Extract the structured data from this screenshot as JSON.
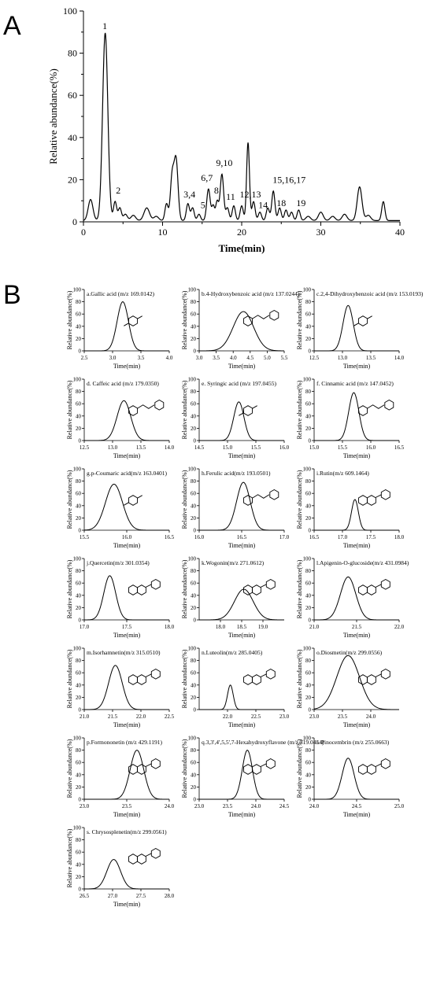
{
  "panels": {
    "A": "A",
    "B": "B"
  },
  "chart_data": [
    {
      "id": "A",
      "type": "line",
      "xlabel": "Time(min)",
      "ylabel": "Relative abundance(%)",
      "xlim": [
        0,
        40
      ],
      "ylim": [
        0,
        100
      ],
      "xticks": [
        "0",
        "10",
        "20",
        "30",
        "40"
      ],
      "yticks": [
        "0",
        "20",
        "40",
        "60",
        "80",
        "100"
      ],
      "peaks": [
        {
          "t": 0.9,
          "h": 10,
          "w": 0.3
        },
        {
          "t": 2.75,
          "h": 89,
          "w": 0.33
        },
        {
          "t": 4.0,
          "h": 9,
          "w": 0.2
        },
        {
          "t": 4.6,
          "h": 6,
          "w": 0.2
        },
        {
          "t": 5.3,
          "h": 3,
          "w": 0.25
        },
        {
          "t": 6.3,
          "h": 2.5,
          "w": 0.3
        },
        {
          "t": 8.0,
          "h": 6,
          "w": 0.35
        },
        {
          "t": 9.2,
          "h": 2,
          "w": 0.3
        },
        {
          "t": 10.5,
          "h": 8,
          "w": 0.2
        },
        {
          "t": 11.2,
          "h": 20,
          "w": 0.22
        },
        {
          "t": 11.7,
          "h": 29,
          "w": 0.25
        },
        {
          "t": 13.2,
          "h": 8,
          "w": 0.2
        },
        {
          "t": 13.8,
          "h": 6,
          "w": 0.2
        },
        {
          "t": 14.6,
          "h": 3,
          "w": 0.2
        },
        {
          "t": 15.8,
          "h": 15,
          "w": 0.22
        },
        {
          "t": 16.4,
          "h": 7,
          "w": 0.18
        },
        {
          "t": 16.9,
          "h": 9,
          "w": 0.18
        },
        {
          "t": 17.5,
          "h": 22,
          "w": 0.22
        },
        {
          "t": 18.2,
          "h": 6,
          "w": 0.2
        },
        {
          "t": 19.0,
          "h": 7,
          "w": 0.2
        },
        {
          "t": 20.0,
          "h": 7,
          "w": 0.2
        },
        {
          "t": 20.8,
          "h": 37,
          "w": 0.18
        },
        {
          "t": 21.5,
          "h": 9,
          "w": 0.2
        },
        {
          "t": 22.3,
          "h": 4,
          "w": 0.2
        },
        {
          "t": 23.3,
          "h": 6,
          "w": 0.2
        },
        {
          "t": 24.0,
          "h": 14,
          "w": 0.2
        },
        {
          "t": 24.8,
          "h": 6,
          "w": 0.2
        },
        {
          "t": 25.6,
          "h": 5,
          "w": 0.2
        },
        {
          "t": 26.3,
          "h": 4,
          "w": 0.2
        },
        {
          "t": 27.2,
          "h": 5,
          "w": 0.2
        },
        {
          "t": 28.4,
          "h": 2,
          "w": 0.3
        },
        {
          "t": 30.0,
          "h": 4,
          "w": 0.3
        },
        {
          "t": 31.5,
          "h": 2,
          "w": 0.3
        },
        {
          "t": 33.0,
          "h": 3,
          "w": 0.3
        },
        {
          "t": 34.9,
          "h": 16,
          "w": 0.3
        },
        {
          "t": 36.0,
          "h": 2.5,
          "w": 0.3
        },
        {
          "t": 37.9,
          "h": 9,
          "w": 0.2
        }
      ],
      "peak_labels": [
        {
          "text": "1",
          "t": 2.7,
          "h": 90
        },
        {
          "text": "2",
          "t": 4.4,
          "h": 12
        },
        {
          "text": "3,4",
          "t": 13.4,
          "h": 10
        },
        {
          "text": "5",
          "t": 15.1,
          "h": 5
        },
        {
          "text": "6,7",
          "t": 15.6,
          "h": 18
        },
        {
          "text": "8",
          "t": 16.8,
          "h": 12
        },
        {
          "text": "9,10",
          "t": 17.8,
          "h": 25
        },
        {
          "text": "11",
          "t": 18.6,
          "h": 9
        },
        {
          "text": "12,13",
          "t": 21.1,
          "h": 10
        },
        {
          "text": "14",
          "t": 22.7,
          "h": 5
        },
        {
          "text": "15,16,17",
          "t": 26.0,
          "h": 17
        },
        {
          "text": "18",
          "t": 25.0,
          "h": 6
        },
        {
          "text": "19",
          "t": 27.5,
          "h": 6
        }
      ]
    },
    {
      "id": "a",
      "type": "line",
      "title": "a.Gallic acid (m/z 169.0142)",
      "xlabel": "Time(min)",
      "ylabel": "Relative abundance(%)",
      "xlim": [
        2.5,
        4.0
      ],
      "ylim": [
        0,
        100
      ],
      "xticks": [
        "2.5",
        "3.0",
        "3.5",
        "4.0"
      ],
      "yticks": [
        "0",
        "20",
        "40",
        "60",
        "80",
        "100"
      ],
      "peak": {
        "center": 3.18,
        "height": 80,
        "width": 0.1
      }
    },
    {
      "id": "b",
      "type": "line",
      "title": "b.4-Hydroxybenzoic acid (m/z 137.0244)",
      "xlabel": "Time(min)",
      "ylabel": "Relative abundance(%)",
      "xlim": [
        3.0,
        5.5
      ],
      "ylim": [
        0,
        100
      ],
      "xticks": [
        "3.0",
        "3.5",
        "4.0",
        "4.5",
        "5.0",
        "5.5"
      ],
      "yticks": [
        "0",
        "20",
        "40",
        "60",
        "80",
        "100"
      ],
      "peak": {
        "center": 4.3,
        "height": 64,
        "width": 0.3
      }
    },
    {
      "id": "c",
      "type": "line",
      "title": "c.2,4-Dihydroxybenzoic acid (m/z 153.0193)",
      "xlabel": "Time(min)",
      "ylabel": "Relative abundance(%)",
      "xlim": [
        12.5,
        14.0
      ],
      "ylim": [
        0,
        100
      ],
      "xticks": [
        "12.5",
        "13.0",
        "13.5",
        "14.0"
      ],
      "yticks": [
        "0",
        "20",
        "40",
        "60",
        "80",
        "100"
      ],
      "peak": {
        "center": 13.1,
        "height": 74,
        "width": 0.09
      }
    },
    {
      "id": "d",
      "type": "line",
      "title": "d. Caffeic acid (m/z 179.0350)",
      "xlabel": "Time(min)",
      "ylabel": "Relative abundance(%)",
      "xlim": [
        12.5,
        14.0
      ],
      "ylim": [
        0,
        100
      ],
      "xticks": [
        "12.5",
        "13.0",
        "13.5",
        "14.0"
      ],
      "yticks": [
        "0",
        "20",
        "40",
        "60",
        "80",
        "100"
      ],
      "peak": {
        "center": 13.2,
        "height": 65,
        "width": 0.12
      }
    },
    {
      "id": "e",
      "type": "line",
      "title": "e. Syringic acid (m/z 197.0455)",
      "xlabel": "Time(min)",
      "ylabel": "Relative abundance(%)",
      "xlim": [
        14.5,
        16.0
      ],
      "ylim": [
        0,
        100
      ],
      "xticks": [
        "14.5",
        "15.0",
        "15.5",
        "16.0"
      ],
      "yticks": [
        "0",
        "20",
        "40",
        "60",
        "80",
        "100"
      ],
      "peak": {
        "center": 15.2,
        "height": 63,
        "width": 0.09
      }
    },
    {
      "id": "f",
      "type": "line",
      "title": "f. Cinnamic acid (m/z 147.0452)",
      "xlabel": "Time(min)",
      "ylabel": "Relative abundance(%)",
      "xlim": [
        15.0,
        16.5
      ],
      "ylim": [
        0,
        100
      ],
      "xticks": [
        "15.0",
        "15.5",
        "16.0",
        "16.5"
      ],
      "yticks": [
        "0",
        "20",
        "40",
        "60",
        "80",
        "100"
      ],
      "peak": {
        "center": 15.7,
        "height": 78,
        "width": 0.09
      }
    },
    {
      "id": "g",
      "type": "line",
      "title": "g.p-Coumaric acid(m/z 163.0401)",
      "xlabel": "Time(min)",
      "ylabel": "Relative abundance(%)",
      "xlim": [
        15.5,
        16.5
      ],
      "ylim": [
        0,
        100
      ],
      "xticks": [
        "15.5",
        "16.0",
        "16.5"
      ],
      "yticks": [
        "0",
        "20",
        "40",
        "60",
        "80",
        "100"
      ],
      "peak": {
        "center": 15.85,
        "height": 75,
        "width": 0.1
      }
    },
    {
      "id": "h",
      "type": "line",
      "title": "h.Ferulic acid(m/z 193.0501)",
      "xlabel": "Time(min)",
      "ylabel": "Relative abundance(%)",
      "xlim": [
        16.0,
        17.0
      ],
      "ylim": [
        0,
        100
      ],
      "xticks": [
        "16.0",
        "16.5",
        "17.0"
      ],
      "yticks": [
        "0",
        "20",
        "40",
        "60",
        "80",
        "100"
      ],
      "peak": {
        "center": 16.52,
        "height": 78,
        "width": 0.08
      }
    },
    {
      "id": "i",
      "type": "line",
      "title": "i.Rutin(m/z 609.1464)",
      "xlabel": "Time(min)",
      "ylabel": "Relative abundance(%)",
      "xlim": [
        16.5,
        18.0
      ],
      "ylim": [
        0,
        100
      ],
      "xticks": [
        "16.5",
        "17.0",
        "17.5",
        "18.0"
      ],
      "yticks": [
        "0",
        "20",
        "40",
        "60",
        "80",
        "100"
      ],
      "peak": {
        "center": 17.22,
        "height": 50,
        "width": 0.06
      }
    },
    {
      "id": "j",
      "type": "line",
      "title": "j.Quercetin(m/z 301.0354)",
      "xlabel": "Time(min)",
      "ylabel": "Relative abundance(%)",
      "xlim": [
        17.0,
        18.0
      ],
      "ylim": [
        0,
        100
      ],
      "xticks": [
        "17.0",
        "17.5",
        "18.0"
      ],
      "yticks": [
        "0",
        "20",
        "40",
        "60",
        "80",
        "100"
      ],
      "peak": {
        "center": 17.3,
        "height": 72,
        "width": 0.07
      }
    },
    {
      "id": "k",
      "type": "line",
      "title": "k.Wogonin(m/z 271.0612)",
      "xlabel": "Time(min)",
      "ylabel": "Relative abundance(%)",
      "xlim": [
        17.5,
        19.5
      ],
      "ylim": [
        0,
        100
      ],
      "xticks": [
        "18.0",
        "18.5",
        "19.0"
      ],
      "yticks": [
        "0",
        "20",
        "40",
        "60",
        "80",
        "100"
      ],
      "peak": {
        "center": 18.55,
        "height": 50,
        "width": 0.22
      }
    },
    {
      "id": "l",
      "type": "line",
      "title": "l.Apigenin-O-glucoside(m/z 431.0984)",
      "xlabel": "Time(min)",
      "ylabel": "Relative abundance(%)",
      "xlim": [
        21.0,
        22.0
      ],
      "ylim": [
        0,
        100
      ],
      "xticks": [
        "21.0",
        "21.5",
        "22.0"
      ],
      "yticks": [
        "0",
        "20",
        "40",
        "60",
        "80",
        "100"
      ],
      "peak": {
        "center": 21.4,
        "height": 70,
        "width": 0.09
      }
    },
    {
      "id": "m",
      "type": "line",
      "title": "m.Isorhamnetin(m/z 315.0510)",
      "xlabel": "Time(min)",
      "ylabel": "Relative abundance(%)",
      "xlim": [
        21.0,
        22.5
      ],
      "ylim": [
        0,
        100
      ],
      "xticks": [
        "21.0",
        "21.5",
        "22.0",
        "22.5"
      ],
      "yticks": [
        "0",
        "20",
        "40",
        "60",
        "80",
        "100"
      ],
      "peak": {
        "center": 21.55,
        "height": 72,
        "width": 0.12
      }
    },
    {
      "id": "n",
      "type": "line",
      "title": "n.Luteolin(m/z 285.0405)",
      "xlabel": "Time(min)",
      "ylabel": "Relative abundance(%)",
      "xlim": [
        21.5,
        23.0
      ],
      "ylim": [
        0,
        100
      ],
      "xticks": [
        "22.0",
        "22.5",
        "23.0"
      ],
      "yticks": [
        "0",
        "20",
        "40",
        "60",
        "80",
        "100"
      ],
      "peak": {
        "center": 22.05,
        "height": 40,
        "width": 0.05
      }
    },
    {
      "id": "o",
      "type": "line",
      "title": "o.Diosmetin(m/z 299.0556)",
      "xlabel": "Time(min)",
      "ylabel": "Relative abundance(%)",
      "xlim": [
        23.0,
        24.5
      ],
      "ylim": [
        0,
        100
      ],
      "xticks": [
        "23.0",
        "23.5",
        "24.0"
      ],
      "yticks": [
        "0",
        "20",
        "40",
        "60",
        "80",
        "100"
      ],
      "peak": {
        "center": 23.6,
        "height": 88,
        "width": 0.2
      }
    },
    {
      "id": "p",
      "type": "line",
      "title": "p.Formononetin (m/z 429.1191)",
      "xlabel": "Time(min)",
      "ylabel": "Relative abundance(%)",
      "xlim": [
        23.0,
        24.0
      ],
      "ylim": [
        0,
        100
      ],
      "xticks": [
        "23.0",
        "23.5",
        "24.0"
      ],
      "yticks": [
        "0",
        "20",
        "40",
        "60",
        "80",
        "100"
      ],
      "peak": {
        "center": 23.62,
        "height": 80,
        "width": 0.08
      }
    },
    {
      "id": "q",
      "type": "line",
      "title": "q.3,3',4',5,5',7-Hexahydroxyflavone (m/z 319.0454)",
      "xlabel": "Time(min)",
      "ylabel": "Relative abundance(%)",
      "xlim": [
        23.0,
        24.5
      ],
      "ylim": [
        0,
        100
      ],
      "xticks": [
        "23.0",
        "23.5",
        "24.0",
        "24.5"
      ],
      "yticks": [
        "0",
        "20",
        "40",
        "60",
        "80",
        "100"
      ],
      "peak": {
        "center": 23.85,
        "height": 80,
        "width": 0.09
      }
    },
    {
      "id": "r",
      "type": "line",
      "title": "r. Pinocembrin (m/z 255.0663)",
      "xlabel": "Time(min)",
      "ylabel": "Relative abundance(%)",
      "xlim": [
        24.0,
        25.0
      ],
      "ylim": [
        0,
        100
      ],
      "xticks": [
        "24.0",
        "24.5",
        "25.0"
      ],
      "yticks": [
        "0",
        "20",
        "40",
        "60",
        "80",
        "100"
      ],
      "peak": {
        "center": 24.4,
        "height": 67,
        "width": 0.07
      }
    },
    {
      "id": "s",
      "type": "line",
      "title": "s. Chrysosplenetin(m/z 299.0561)",
      "xlabel": "Time(min)",
      "ylabel": "Relative abundance(%)",
      "xlim": [
        26.5,
        28.0
      ],
      "ylim": [
        0,
        100
      ],
      "xticks": [
        "26.5",
        "27.0",
        "27.5",
        "28.0"
      ],
      "yticks": [
        "0",
        "20",
        "40",
        "60",
        "80",
        "100"
      ],
      "peak": {
        "center": 27.02,
        "height": 48,
        "width": 0.12
      }
    }
  ]
}
